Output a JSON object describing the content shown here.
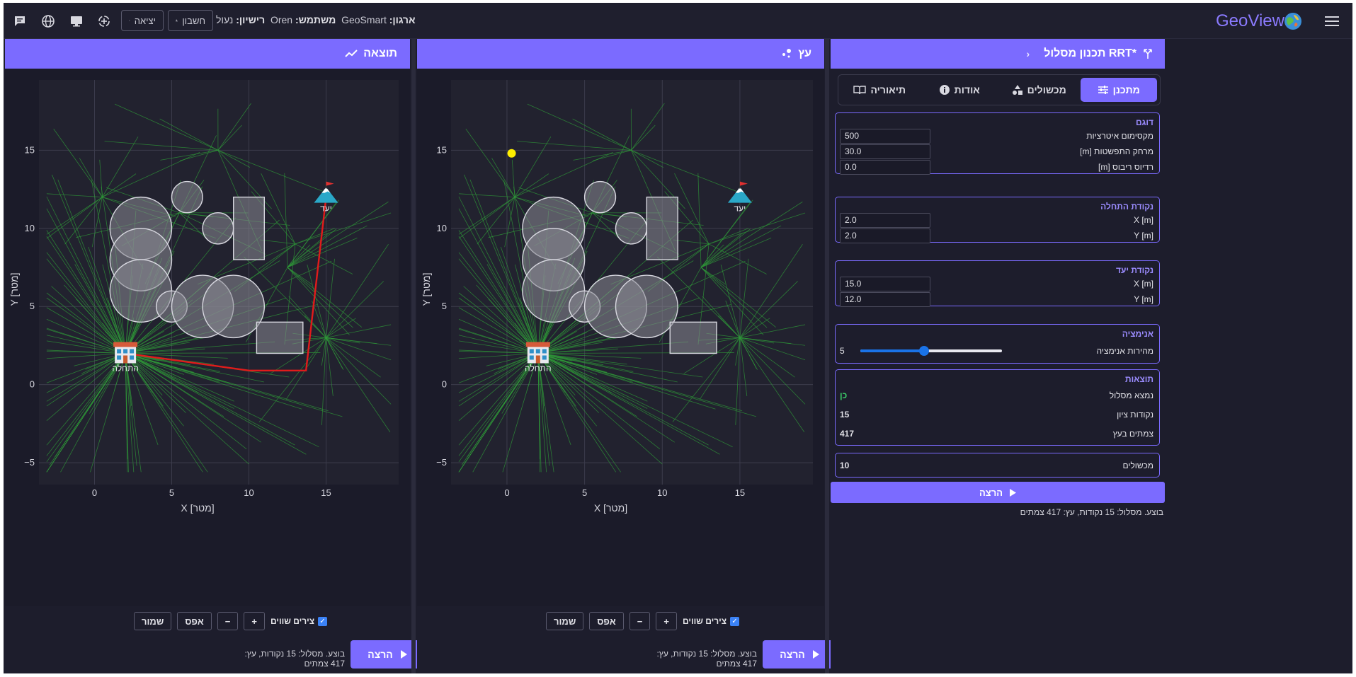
{
  "topbar": {
    "logo_text": "GeoView",
    "org_label": "ארגון:",
    "org_value": "GeoSmart",
    "user_label": "משתמש:",
    "user_value": "Oren",
    "license_label": "רישיון:",
    "license_value": "נעול",
    "account_label": "חשבון",
    "logout_label": "יציאה"
  },
  "sidebar": {
    "title": "תכנון מסלול RRT*",
    "tabs": [
      {
        "label": "מתכנן",
        "icon": "sliders-icon",
        "active": true
      },
      {
        "label": "מכשולים",
        "icon": "shapes-icon",
        "active": false
      },
      {
        "label": "אודות",
        "icon": "info-icon",
        "active": false
      },
      {
        "label": "תיאוריה",
        "icon": "book-icon",
        "active": false
      }
    ],
    "sampler": {
      "title": "דוגם",
      "max_iter_label": "מקסימום איטרציות",
      "max_iter_value": "500",
      "expand_label": "מרחק התפשטות [m]",
      "expand_value": "30.0",
      "radius_label": "רדיוס ריבוס [m]",
      "radius_value": "0.0"
    },
    "start": {
      "title": "נקודת התחלה",
      "x_label": "X [m]",
      "x_value": "2.0",
      "y_label": "Y [m]",
      "y_value": "2.0"
    },
    "goal": {
      "title": "נקודת יעד",
      "x_label": "X [m]",
      "x_value": "15.0",
      "y_label": "Y [m]",
      "y_value": "12.0"
    },
    "animation": {
      "title": "אנימציה",
      "speed_label": "מהירות אנימציה",
      "speed_value": "5",
      "speed_fraction": 0.45
    },
    "results": {
      "title": "תוצאות",
      "found_label": "נמצא מסלול",
      "found_value": "כן",
      "waypoints_label": "נקודות ציון",
      "waypoints_value": "15",
      "nodes_label": "צמתים בעץ",
      "nodes_value": "417"
    },
    "obstacles": {
      "label": "מכשולים",
      "value": "10"
    },
    "run_label": "הרצה",
    "status": "בוצע. מסלול: 15 נקודות, עץ: 417 צמתים"
  },
  "tree_panel": {
    "title": "עץ",
    "equal_axes_label": "צירים שווים",
    "plus_label": "+",
    "minus_label": "−",
    "reset_label": "אפס",
    "save_label": "שמור",
    "run_label": "הרצה",
    "status": "בוצע. מסלול: 15 נקודות, עץ: 417 צמתים"
  },
  "result_panel": {
    "title": "תוצאה",
    "equal_axes_label": "צירים שווים",
    "plus_label": "+",
    "minus_label": "−",
    "reset_label": "אפס",
    "save_label": "שמור",
    "run_label": "הרצה",
    "status": "בוצע. מסלול: 15 נקודות, עץ: 417 צמתים"
  },
  "plot": {
    "xlabel": "X [מטר]",
    "ylabel": "Y [מטר]",
    "xticks": [
      0,
      5,
      10,
      15
    ],
    "yticks": [
      -5,
      0,
      5,
      10,
      15
    ],
    "xlim": [
      -3.6,
      19.7
    ],
    "ylim": [
      -6.4,
      19.5
    ],
    "start_label": "התחלה",
    "goal_label": "יעד",
    "start": [
      2,
      2
    ],
    "goal": [
      15,
      12
    ],
    "colors": {
      "tree": "#2f9a38",
      "path": "#e01b1b",
      "obstacle": "#8a8a94",
      "sample": "#ffee00"
    },
    "circles": [
      {
        "x": 3,
        "y": 10,
        "r": 2
      },
      {
        "x": 3,
        "y": 8,
        "r": 2
      },
      {
        "x": 3,
        "y": 6,
        "r": 2
      },
      {
        "x": 6,
        "y": 12,
        "r": 1
      },
      {
        "x": 8,
        "y": 10,
        "r": 1
      },
      {
        "x": 5,
        "y": 5,
        "r": 1
      },
      {
        "x": 7,
        "y": 5,
        "r": 2
      },
      {
        "x": 9,
        "y": 5,
        "r": 2
      }
    ],
    "rects": [
      {
        "x": 9,
        "y": 8,
        "w": 2,
        "h": 4
      },
      {
        "x": 10.5,
        "y": 2,
        "w": 3,
        "h": 2
      }
    ],
    "path": [
      [
        2,
        2
      ],
      [
        10,
        0.9
      ],
      [
        13.7,
        0.9
      ],
      [
        15,
        12
      ]
    ],
    "sample_point": [
      0.3,
      14.8
    ]
  }
}
